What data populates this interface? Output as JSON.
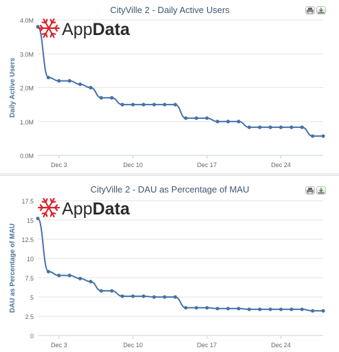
{
  "logo": {
    "text_app": "App",
    "text_data": "Data",
    "brand_color": "#d8232a"
  },
  "colors": {
    "line": "#4572a7",
    "axis_text": "#4d759e",
    "title": "#3e576f",
    "grid": "#e3e3e3"
  },
  "toolbar": {
    "print_icon": "printer-icon",
    "export_icon": "download-icon"
  },
  "chart_data": [
    {
      "type": "line",
      "title": "CityVille 2 - Daily Active Users",
      "ylabel": "Daily Active Users",
      "xlabel": "",
      "ylim": [
        0,
        4000000
      ],
      "y_ticks": [
        0,
        1000000,
        2000000,
        3000000,
        4000000
      ],
      "y_tick_labels": [
        "0.0M",
        "1.0M",
        "2.0M",
        "3.0M",
        "4.0M"
      ],
      "x_tick_labels": [
        "Dec 3",
        "Dec 10",
        "Dec 17",
        "Dec 24"
      ],
      "x_tick_positions": [
        3,
        10,
        17,
        24
      ],
      "xlim": [
        1,
        28
      ],
      "grid": true,
      "series": [
        {
          "x": [
            1,
            2,
            3,
            4,
            5,
            6,
            7,
            8,
            9,
            10,
            11,
            12,
            13,
            14,
            15,
            16,
            17,
            18,
            19,
            20,
            21,
            22,
            23,
            24,
            25,
            26,
            27,
            28
          ],
          "values": [
            3800000,
            2300000,
            2200000,
            2200000,
            2100000,
            2000000,
            1700000,
            1700000,
            1500000,
            1500000,
            1500000,
            1500000,
            1500000,
            1500000,
            1100000,
            1100000,
            1100000,
            1000000,
            1000000,
            1000000,
            830000,
            830000,
            830000,
            830000,
            830000,
            830000,
            570000,
            570000
          ]
        }
      ]
    },
    {
      "type": "line",
      "title": "CityVille 2 - DAU as Percentage of MAU",
      "ylabel": "DAU as Percentage of MAU",
      "xlabel": "",
      "ylim": [
        0,
        17.5
      ],
      "y_ticks": [
        0,
        2.5,
        5,
        7.5,
        10,
        12.5,
        15,
        17.5
      ],
      "y_tick_labels": [
        "0",
        "2.5",
        "5",
        "7.5",
        "10",
        "12.5",
        "15",
        "17.5"
      ],
      "x_tick_labels": [
        "Dec 3",
        "Dec 10",
        "Dec 17",
        "Dec 24"
      ],
      "x_tick_positions": [
        3,
        10,
        17,
        24
      ],
      "xlim": [
        1,
        28
      ],
      "grid": true,
      "series": [
        {
          "x": [
            1,
            2,
            3,
            4,
            5,
            6,
            7,
            8,
            9,
            10,
            11,
            12,
            13,
            14,
            15,
            16,
            17,
            18,
            19,
            20,
            21,
            22,
            23,
            24,
            25,
            26,
            27,
            28
          ],
          "values": [
            15.2,
            8.3,
            7.8,
            7.8,
            7.4,
            7.0,
            5.8,
            5.8,
            5.1,
            5.1,
            5.1,
            5.0,
            5.0,
            5.0,
            3.6,
            3.6,
            3.6,
            3.5,
            3.5,
            3.5,
            3.4,
            3.4,
            3.4,
            3.4,
            3.4,
            3.4,
            3.2,
            3.2
          ]
        }
      ]
    }
  ]
}
